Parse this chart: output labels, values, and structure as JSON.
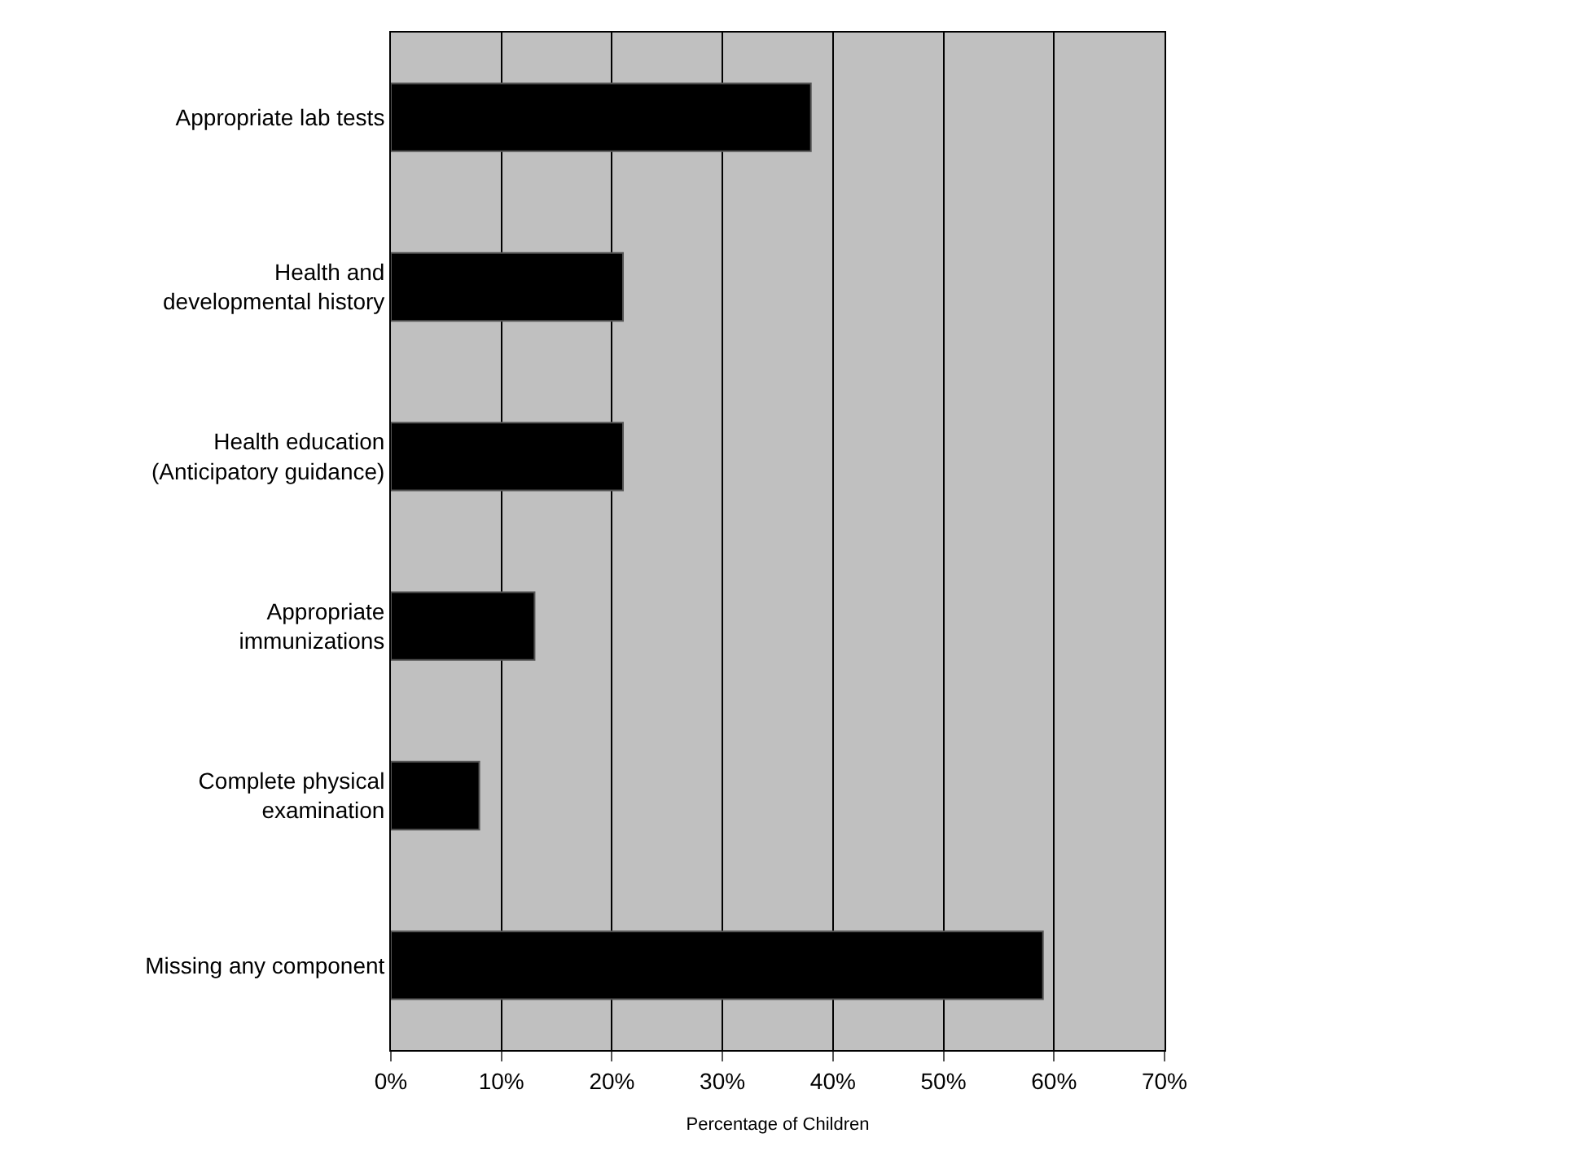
{
  "chart_data": {
    "type": "bar",
    "orientation": "horizontal",
    "xlabel": "Percentage of Children",
    "categories": [
      "Appropriate lab tests",
      "Health and\ndevelopmental history",
      "Health education\n(Anticipatory guidance)",
      "Appropriate\nimmunizations",
      "Complete physical\nexamination",
      "Missing any component"
    ],
    "values": [
      38,
      21,
      21,
      13,
      8,
      59
    ],
    "color": "#000000",
    "xlim": [
      0,
      70
    ],
    "xticks": [
      {
        "value": 0,
        "label": "0%"
      },
      {
        "value": 10,
        "label": "10%"
      },
      {
        "value": 20,
        "label": "20%"
      },
      {
        "value": 30,
        "label": "30%"
      },
      {
        "value": 40,
        "label": "40%"
      },
      {
        "value": 50,
        "label": "50%"
      },
      {
        "value": 60,
        "label": "60%"
      },
      {
        "value": 70,
        "label": "70%"
      }
    ],
    "grid": "x",
    "legend": false
  }
}
